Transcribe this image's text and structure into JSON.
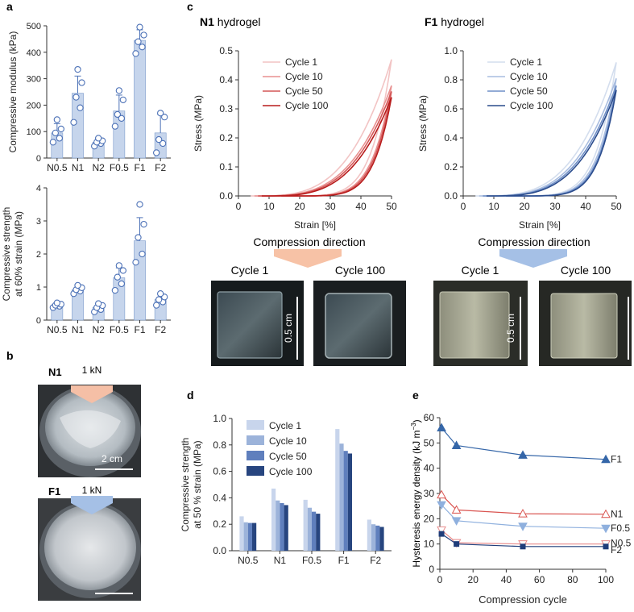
{
  "panel_labels": {
    "a": "a",
    "b": "b",
    "c": "c",
    "d": "d",
    "e": "e"
  },
  "colors": {
    "bar_fill": "#c6d5ec",
    "bar_edge": "#7b9acb",
    "dot": "#4d72b7",
    "red": [
      "#f2c4c4",
      "#e89191",
      "#d45757",
      "#b81c1c"
    ],
    "blue": [
      "#d4deee",
      "#a9bde0",
      "#6f8fc7",
      "#2a4b8c"
    ],
    "d_bars": [
      "#c8d5ec",
      "#9cb3da",
      "#5f7fbd",
      "#27457f"
    ],
    "orange_arrow": "#f7c2a6",
    "blue_arrow": "#a5c0e6",
    "e_f1": "#3566a8",
    "e_n1": "#d9534f",
    "e_f05": "#8fb0de",
    "e_n05": "#e88a8a",
    "e_f2": "#1f3d7a"
  },
  "chart_data": [
    {
      "id": "a-top",
      "type": "bar",
      "categories": [
        "N0.5",
        "N1",
        "N2",
        "F0.5",
        "F1",
        "F2"
      ],
      "values": [
        95,
        245,
        60,
        178,
        445,
        95
      ],
      "errors": [
        35,
        65,
        15,
        60,
        40,
        70
      ],
      "points": [
        [
          60,
          75,
          95,
          110,
          145
        ],
        [
          135,
          190,
          230,
          285,
          335
        ],
        [
          45,
          55,
          60,
          65,
          75
        ],
        [
          120,
          150,
          165,
          220,
          255
        ],
        [
          395,
          420,
          440,
          465,
          495
        ],
        [
          20,
          55,
          70,
          155,
          170
        ]
      ],
      "ylabel": "Compressive modulus (kPa)",
      "ylim": [
        0,
        500
      ],
      "yticks": [
        "0",
        "100",
        "200",
        "300",
        "400",
        "500"
      ]
    },
    {
      "id": "a-bottom",
      "type": "bar",
      "categories": [
        "N0.5",
        "N1",
        "N2",
        "F0.5",
        "F1",
        "F2"
      ],
      "values": [
        0.45,
        0.92,
        0.38,
        1.28,
        2.4,
        0.62
      ],
      "errors": [
        0.08,
        0.12,
        0.12,
        0.3,
        0.7,
        0.18
      ],
      "points": [
        [
          0.38,
          0.42,
          0.45,
          0.48,
          0.52
        ],
        [
          0.8,
          0.88,
          0.92,
          0.98,
          1.05
        ],
        [
          0.25,
          0.32,
          0.38,
          0.44,
          0.5
        ],
        [
          0.9,
          1.1,
          1.3,
          1.5,
          1.65
        ],
        [
          1.75,
          2.0,
          2.5,
          2.9,
          3.5
        ],
        [
          0.45,
          0.55,
          0.62,
          0.7,
          0.8
        ]
      ],
      "ylabel_lines": [
        "Compressive strength",
        "at 60% strain (MPa)"
      ],
      "ylim": [
        0,
        4
      ],
      "yticks": [
        "0",
        "1",
        "2",
        "3",
        "4"
      ]
    },
    {
      "id": "c-N1",
      "type": "line",
      "title_bold": "N1",
      "title_rest": " hydrogel",
      "xlabel": "Strain [%]",
      "ylabel": "Stress (MPa)",
      "xlim": [
        0,
        50
      ],
      "ylim": [
        0,
        0.5
      ],
      "xticks": [
        "0",
        "10",
        "20",
        "30",
        "40",
        "50"
      ],
      "yticks": [
        "0.0",
        "0.1",
        "0.2",
        "0.3",
        "0.4",
        "0.5"
      ],
      "legend": [
        "Cycle 1",
        "Cycle 10",
        "Cycle 50",
        "Cycle 100"
      ],
      "peaks": [
        0.47,
        0.38,
        0.36,
        0.34
      ]
    },
    {
      "id": "c-F1",
      "type": "line",
      "title_bold": "F1",
      "title_rest": " hydrogel",
      "xlabel": "Strain [%]",
      "ylabel": "Stress (MPa)",
      "xlim": [
        0,
        50
      ],
      "ylim": [
        0,
        1.0
      ],
      "xticks": [
        "0",
        "10",
        "20",
        "30",
        "40",
        "50"
      ],
      "yticks": [
        "0.0",
        "0.2",
        "0.4",
        "0.6",
        "0.8",
        "1.0"
      ],
      "legend": [
        "Cycle 1",
        "Cycle 10",
        "Cycle 50",
        "Cycle 100"
      ],
      "peaks": [
        0.92,
        0.81,
        0.76,
        0.73
      ]
    },
    {
      "id": "d",
      "type": "bar",
      "categories": [
        "N0.5",
        "N1",
        "F0.5",
        "F1",
        "F2"
      ],
      "series": [
        {
          "name": "Cycle 1",
          "values": [
            0.26,
            0.47,
            0.385,
            0.92,
            0.235
          ]
        },
        {
          "name": "Cycle 10",
          "values": [
            0.215,
            0.38,
            0.325,
            0.81,
            0.2
          ]
        },
        {
          "name": "Cycle 50",
          "values": [
            0.21,
            0.36,
            0.295,
            0.755,
            0.19
          ]
        },
        {
          "name": "Cycle 100",
          "values": [
            0.21,
            0.345,
            0.28,
            0.735,
            0.18
          ]
        }
      ],
      "ylabel_lines": [
        "Compressive strength",
        "at 50 % strain (MPa)"
      ],
      "ylim": [
        0,
        1.0
      ],
      "yticks": [
        "0.0",
        "0.2",
        "0.4",
        "0.6",
        "0.8",
        "1.0"
      ]
    },
    {
      "id": "e",
      "type": "line",
      "x": [
        1,
        10,
        50,
        100
      ],
      "series": [
        {
          "name": "F1",
          "values": [
            56,
            49,
            45.2,
            43.5
          ],
          "marker": "tri-up-filled"
        },
        {
          "name": "N1",
          "values": [
            29.5,
            23.5,
            22,
            21.8
          ],
          "marker": "tri-up-open"
        },
        {
          "name": "F0.5",
          "values": [
            25.5,
            19.2,
            17,
            16.2
          ],
          "marker": "tri-down-filled"
        },
        {
          "name": "N0.5",
          "values": [
            15.5,
            10.5,
            10,
            10
          ],
          "marker": "tri-down-open"
        },
        {
          "name": "F2",
          "values": [
            14,
            10,
            9,
            9
          ],
          "marker": "square-filled"
        }
      ],
      "xlabel": "Compression cycle",
      "ylabel": "Hysteresis energy density (kJ m",
      "ylabel_sup": "−3",
      "ylabel_end": ")",
      "xlim": [
        0,
        100
      ],
      "ylim": [
        0,
        60
      ],
      "xticks": [
        "0",
        "20",
        "40",
        "60",
        "80",
        "100"
      ],
      "yticks": [
        "0",
        "10",
        "20",
        "30",
        "40",
        "50",
        "60"
      ]
    }
  ],
  "panel_b": {
    "n1_label": "N1",
    "f1_label": "F1",
    "force_n1": "1 kN",
    "force_f1": "1 kN",
    "scale": "2 cm"
  },
  "panel_c_photos": {
    "direction_n1": "Compression direction",
    "direction_f1": "Compression direction",
    "n1_cycle1": "Cycle 1",
    "n1_cycle100": "Cycle 100",
    "f1_cycle1": "Cycle 1",
    "f1_cycle100": "Cycle 100",
    "scale_n1": "0.5 cm",
    "scale_f1": "0.5 cm"
  }
}
